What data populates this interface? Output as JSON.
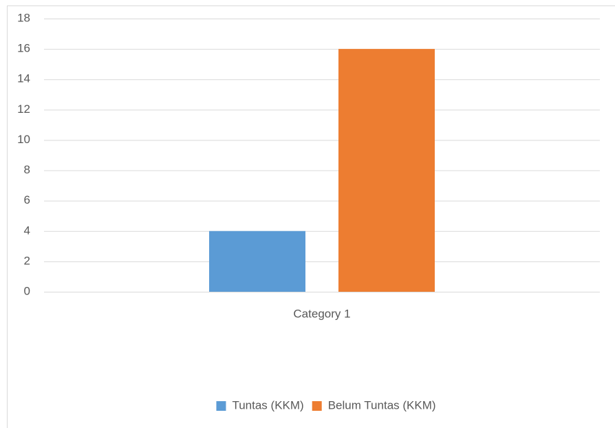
{
  "chart_data": {
    "type": "bar",
    "categories": [
      "Category 1"
    ],
    "series": [
      {
        "name": "Tuntas (KKM)",
        "color": "#5b9bd5",
        "values": [
          4
        ]
      },
      {
        "name": "Belum Tuntas (KKM)",
        "color": "#ed7d31",
        "values": [
          16
        ]
      }
    ],
    "ylim": [
      0,
      18
    ],
    "yticks": [
      0,
      2,
      4,
      6,
      8,
      10,
      12,
      14,
      16,
      18
    ],
    "grid": true,
    "legend": "bottom"
  }
}
